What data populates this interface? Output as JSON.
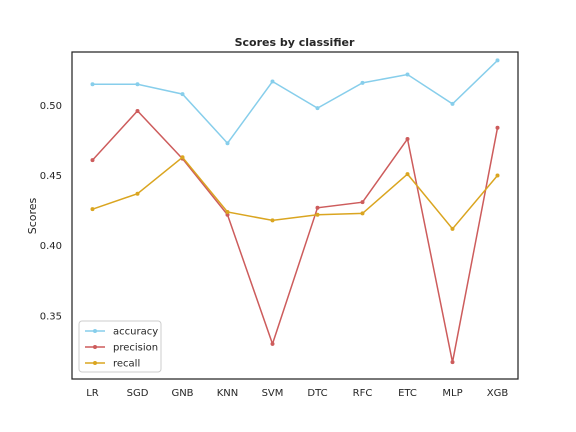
{
  "chart_data": {
    "type": "line",
    "title": "Scores by classifier",
    "xlabel": "",
    "ylabel": "Scores",
    "categories": [
      "LR",
      "SGD",
      "GNB",
      "KNN",
      "SVM",
      "DTC",
      "RFC",
      "ETC",
      "MLP",
      "XGB"
    ],
    "ylim": [
      0.305,
      0.538
    ],
    "yticks": [
      "0.35",
      "0.40",
      "0.45",
      "0.50"
    ],
    "grid": false,
    "legend_position": "lower-left",
    "series": [
      {
        "name": "accuracy",
        "color": "#87ceeb",
        "marker": "circle",
        "values": [
          0.515,
          0.515,
          0.508,
          0.473,
          0.517,
          0.498,
          0.516,
          0.522,
          0.501,
          0.532
        ]
      },
      {
        "name": "precision",
        "color": "#cd5c5c",
        "marker": "circle",
        "values": [
          0.461,
          0.496,
          0.462,
          0.422,
          0.33,
          0.427,
          0.431,
          0.476,
          0.317,
          0.484
        ]
      },
      {
        "name": "recall",
        "color": "#daa520",
        "marker": "circle",
        "values": [
          0.426,
          0.437,
          0.463,
          0.424,
          0.418,
          0.422,
          0.423,
          0.451,
          0.412,
          0.45
        ]
      }
    ]
  }
}
